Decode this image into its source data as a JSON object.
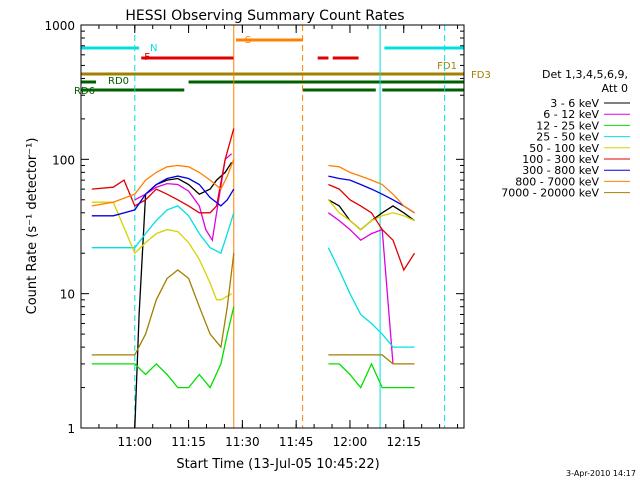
{
  "chart_data": {
    "type": "line",
    "title": "HESSI Observing Summary Count Rates",
    "xlabel": "Start Time (13-Jul-05 10:45:22)",
    "ylabel": "Count Rate (s⁻¹ detector⁻¹)",
    "yscale": "log",
    "ylim": [
      1,
      1000
    ],
    "xlim_minutes": [
      10.75,
      12.53
    ],
    "y_ticks": [
      "1",
      "10",
      "100",
      "1000"
    ],
    "x_ticks": [
      {
        "t": 11.0,
        "label": "11:00"
      },
      {
        "t": 11.25,
        "label": "11:15"
      },
      {
        "t": 11.5,
        "label": "11:30"
      },
      {
        "t": 11.75,
        "label": "11:45"
      },
      {
        "t": 12.0,
        "label": "12:00"
      },
      {
        "t": 12.25,
        "label": "12:15"
      }
    ],
    "timestamp": "3-Apr-2010 14:17",
    "legend_header": [
      "Det 1,3,4,5,6,9,",
      "Att 0"
    ],
    "series": [
      {
        "name": "3 - 6 keV",
        "color": "#000000",
        "seg1": [
          [
            11.0,
            1.0
          ],
          [
            11.02,
            7
          ],
          [
            11.05,
            55
          ],
          [
            11.1,
            65
          ],
          [
            11.15,
            70
          ],
          [
            11.2,
            72
          ],
          [
            11.25,
            65
          ],
          [
            11.3,
            55
          ],
          [
            11.35,
            60
          ],
          [
            11.38,
            70
          ],
          [
            11.42,
            80
          ],
          [
            11.45,
            95
          ]
        ],
        "seg2": [
          [
            11.9,
            50
          ],
          [
            11.95,
            45
          ],
          [
            12.0,
            35
          ],
          [
            12.05,
            30
          ],
          [
            12.1,
            35
          ],
          [
            12.15,
            40
          ],
          [
            12.2,
            45
          ],
          [
            12.25,
            40
          ],
          [
            12.3,
            35
          ]
        ]
      },
      {
        "name": "6 - 12 keV",
        "color": "#e000e0",
        "seg1": [
          [
            11.0,
            50
          ],
          [
            11.05,
            55
          ],
          [
            11.1,
            62
          ],
          [
            11.15,
            66
          ],
          [
            11.2,
            65
          ],
          [
            11.25,
            58
          ],
          [
            11.3,
            45
          ],
          [
            11.33,
            30
          ],
          [
            11.36,
            25
          ],
          [
            11.38,
            40
          ],
          [
            11.42,
            100
          ],
          [
            11.45,
            110
          ]
        ],
        "seg2": [
          [
            11.9,
            40
          ],
          [
            11.95,
            35
          ],
          [
            12.0,
            30
          ],
          [
            12.05,
            25
          ],
          [
            12.1,
            28
          ],
          [
            12.15,
            30
          ],
          [
            12.2,
            3
          ]
        ]
      },
      {
        "name": "12 - 25 keV",
        "color": "#00e000",
        "seg1": [
          [
            10.8,
            3
          ],
          [
            10.9,
            3
          ],
          [
            11.0,
            3
          ],
          [
            11.05,
            2.5
          ],
          [
            11.1,
            3
          ],
          [
            11.15,
            2.5
          ],
          [
            11.2,
            2
          ],
          [
            11.25,
            2
          ],
          [
            11.3,
            2.5
          ],
          [
            11.35,
            2
          ],
          [
            11.4,
            3
          ],
          [
            11.43,
            5
          ],
          [
            11.46,
            8
          ]
        ],
        "seg2": [
          [
            11.9,
            3
          ],
          [
            11.95,
            3
          ],
          [
            12.0,
            2.5
          ],
          [
            12.05,
            2
          ],
          [
            12.1,
            3
          ],
          [
            12.15,
            2
          ],
          [
            12.2,
            2
          ],
          [
            12.25,
            2
          ],
          [
            12.3,
            2
          ]
        ]
      },
      {
        "name": "25 - 50 keV",
        "color": "#00e0e0",
        "seg1": [
          [
            10.8,
            22
          ],
          [
            10.9,
            22
          ],
          [
            11.0,
            22
          ],
          [
            11.05,
            28
          ],
          [
            11.1,
            35
          ],
          [
            11.15,
            42
          ],
          [
            11.2,
            45
          ],
          [
            11.25,
            38
          ],
          [
            11.3,
            28
          ],
          [
            11.35,
            22
          ],
          [
            11.4,
            20
          ],
          [
            11.43,
            28
          ],
          [
            11.46,
            40
          ]
        ],
        "seg2": [
          [
            11.9,
            22
          ],
          [
            11.95,
            15
          ],
          [
            12.0,
            10
          ],
          [
            12.05,
            7
          ],
          [
            12.1,
            6
          ],
          [
            12.15,
            5
          ],
          [
            12.2,
            4
          ],
          [
            12.25,
            4
          ],
          [
            12.3,
            4
          ]
        ]
      },
      {
        "name": "50 - 100 keV",
        "color": "#d4d400",
        "seg1": [
          [
            10.8,
            48
          ],
          [
            10.9,
            48
          ],
          [
            11.0,
            20
          ],
          [
            11.05,
            24
          ],
          [
            11.1,
            28
          ],
          [
            11.15,
            30
          ],
          [
            11.2,
            29
          ],
          [
            11.25,
            24
          ],
          [
            11.3,
            18
          ],
          [
            11.35,
            12
          ],
          [
            11.38,
            9
          ],
          [
            11.4,
            9
          ],
          [
            11.45,
            10
          ]
        ],
        "seg2": [
          [
            11.9,
            50
          ],
          [
            11.95,
            40
          ],
          [
            12.0,
            35
          ],
          [
            12.05,
            30
          ],
          [
            12.1,
            35
          ],
          [
            12.15,
            38
          ],
          [
            12.2,
            40
          ],
          [
            12.25,
            38
          ],
          [
            12.3,
            35
          ]
        ]
      },
      {
        "name": "100 - 300 keV",
        "color": "#e00000",
        "seg1": [
          [
            10.8,
            60
          ],
          [
            10.9,
            62
          ],
          [
            10.95,
            70
          ],
          [
            11.0,
            45
          ],
          [
            11.05,
            50
          ],
          [
            11.1,
            60
          ],
          [
            11.15,
            55
          ],
          [
            11.2,
            50
          ],
          [
            11.25,
            45
          ],
          [
            11.3,
            40
          ],
          [
            11.35,
            40
          ],
          [
            11.38,
            45
          ],
          [
            11.42,
            100
          ],
          [
            11.46,
            170
          ]
        ],
        "seg2": [
          [
            11.9,
            65
          ],
          [
            11.95,
            60
          ],
          [
            12.0,
            50
          ],
          [
            12.05,
            45
          ],
          [
            12.1,
            40
          ],
          [
            12.15,
            30
          ],
          [
            12.2,
            25
          ],
          [
            12.25,
            15
          ],
          [
            12.3,
            20
          ]
        ]
      },
      {
        "name": "300 - 800 keV",
        "color": "#0000e0",
        "seg1": [
          [
            10.8,
            38
          ],
          [
            10.9,
            38
          ],
          [
            11.0,
            42
          ],
          [
            11.05,
            55
          ],
          [
            11.1,
            65
          ],
          [
            11.15,
            72
          ],
          [
            11.2,
            75
          ],
          [
            11.25,
            72
          ],
          [
            11.3,
            65
          ],
          [
            11.35,
            52
          ],
          [
            11.4,
            45
          ],
          [
            11.43,
            50
          ],
          [
            11.46,
            60
          ]
        ],
        "seg2": [
          [
            11.9,
            75
          ],
          [
            11.95,
            72
          ],
          [
            12.0,
            70
          ],
          [
            12.05,
            65
          ],
          [
            12.1,
            60
          ],
          [
            12.15,
            55
          ],
          [
            12.2,
            50
          ],
          [
            12.25,
            45
          ],
          [
            12.3,
            40
          ]
        ]
      },
      {
        "name": "800 - 7000 keV",
        "color": "#ff8000",
        "seg1": [
          [
            10.8,
            45
          ],
          [
            10.9,
            48
          ],
          [
            11.0,
            55
          ],
          [
            11.05,
            70
          ],
          [
            11.1,
            80
          ],
          [
            11.15,
            88
          ],
          [
            11.2,
            90
          ],
          [
            11.25,
            88
          ],
          [
            11.3,
            80
          ],
          [
            11.35,
            70
          ],
          [
            11.4,
            60
          ],
          [
            11.43,
            75
          ],
          [
            11.46,
            100
          ]
        ],
        "seg2": [
          [
            11.9,
            90
          ],
          [
            11.95,
            88
          ],
          [
            12.0,
            80
          ],
          [
            12.05,
            75
          ],
          [
            12.1,
            70
          ],
          [
            12.15,
            65
          ],
          [
            12.2,
            55
          ],
          [
            12.25,
            45
          ],
          [
            12.3,
            40
          ]
        ]
      },
      {
        "name": "7000 - 20000 keV",
        "color": "#a08000",
        "seg1": [
          [
            10.8,
            3.5
          ],
          [
            10.9,
            3.5
          ],
          [
            11.0,
            3.5
          ],
          [
            11.05,
            5
          ],
          [
            11.1,
            9
          ],
          [
            11.15,
            13
          ],
          [
            11.2,
            15
          ],
          [
            11.25,
            13
          ],
          [
            11.3,
            8
          ],
          [
            11.35,
            5
          ],
          [
            11.4,
            4
          ],
          [
            11.43,
            8
          ],
          [
            11.46,
            20
          ]
        ],
        "seg2": [
          [
            11.9,
            3.5
          ],
          [
            11.95,
            3.5
          ],
          [
            12.0,
            3.5
          ],
          [
            12.05,
            3.5
          ],
          [
            12.1,
            3.5
          ],
          [
            12.15,
            3.5
          ],
          [
            12.2,
            3
          ],
          [
            12.25,
            3
          ],
          [
            12.3,
            3
          ]
        ]
      }
    ],
    "flag_bars": [
      {
        "label": "N",
        "color": "#00e0e0",
        "y": 48,
        "segments": [
          [
            10.75,
            11.02
          ],
          [
            12.16,
            12.53
          ]
        ]
      },
      {
        "label": "S",
        "color": "#ff8000",
        "y": 40,
        "segments": [
          [
            11.47,
            11.78
          ]
        ]
      },
      {
        "label": "F",
        "color": "#e00000",
        "y": 58,
        "segments": [
          [
            11.03,
            11.46
          ],
          [
            11.85,
            11.9
          ],
          [
            11.92,
            12.04
          ]
        ]
      },
      {
        "label": "FD1",
        "color": "#a08000",
        "y": 74,
        "segments": [
          [
            10.75,
            12.53
          ]
        ]
      },
      {
        "label": "FD3",
        "color": "#a08000",
        "y": 74,
        "segments": []
      },
      {
        "label": "RD0",
        "color": "#006000",
        "y": 82,
        "segments": [
          [
            10.75,
            10.82
          ],
          [
            11.25,
            12.53
          ]
        ]
      },
      {
        "label": "RD6",
        "color": "#006000",
        "y": 90,
        "segments": [
          [
            10.75,
            11.23
          ],
          [
            11.78,
            12.12
          ],
          [
            12.15,
            12.53
          ]
        ]
      }
    ],
    "vlines": [
      {
        "t": 11.0,
        "color": "#00e0e0",
        "style": "dashed"
      },
      {
        "t": 11.46,
        "color": "#ff8000",
        "style": "solid"
      },
      {
        "t": 11.78,
        "color": "#ff8000",
        "style": "dashed"
      },
      {
        "t": 12.14,
        "color": "#00e0e0",
        "style": "solid"
      },
      {
        "t": 12.44,
        "color": "#00e0e0",
        "style": "dashed"
      }
    ]
  }
}
